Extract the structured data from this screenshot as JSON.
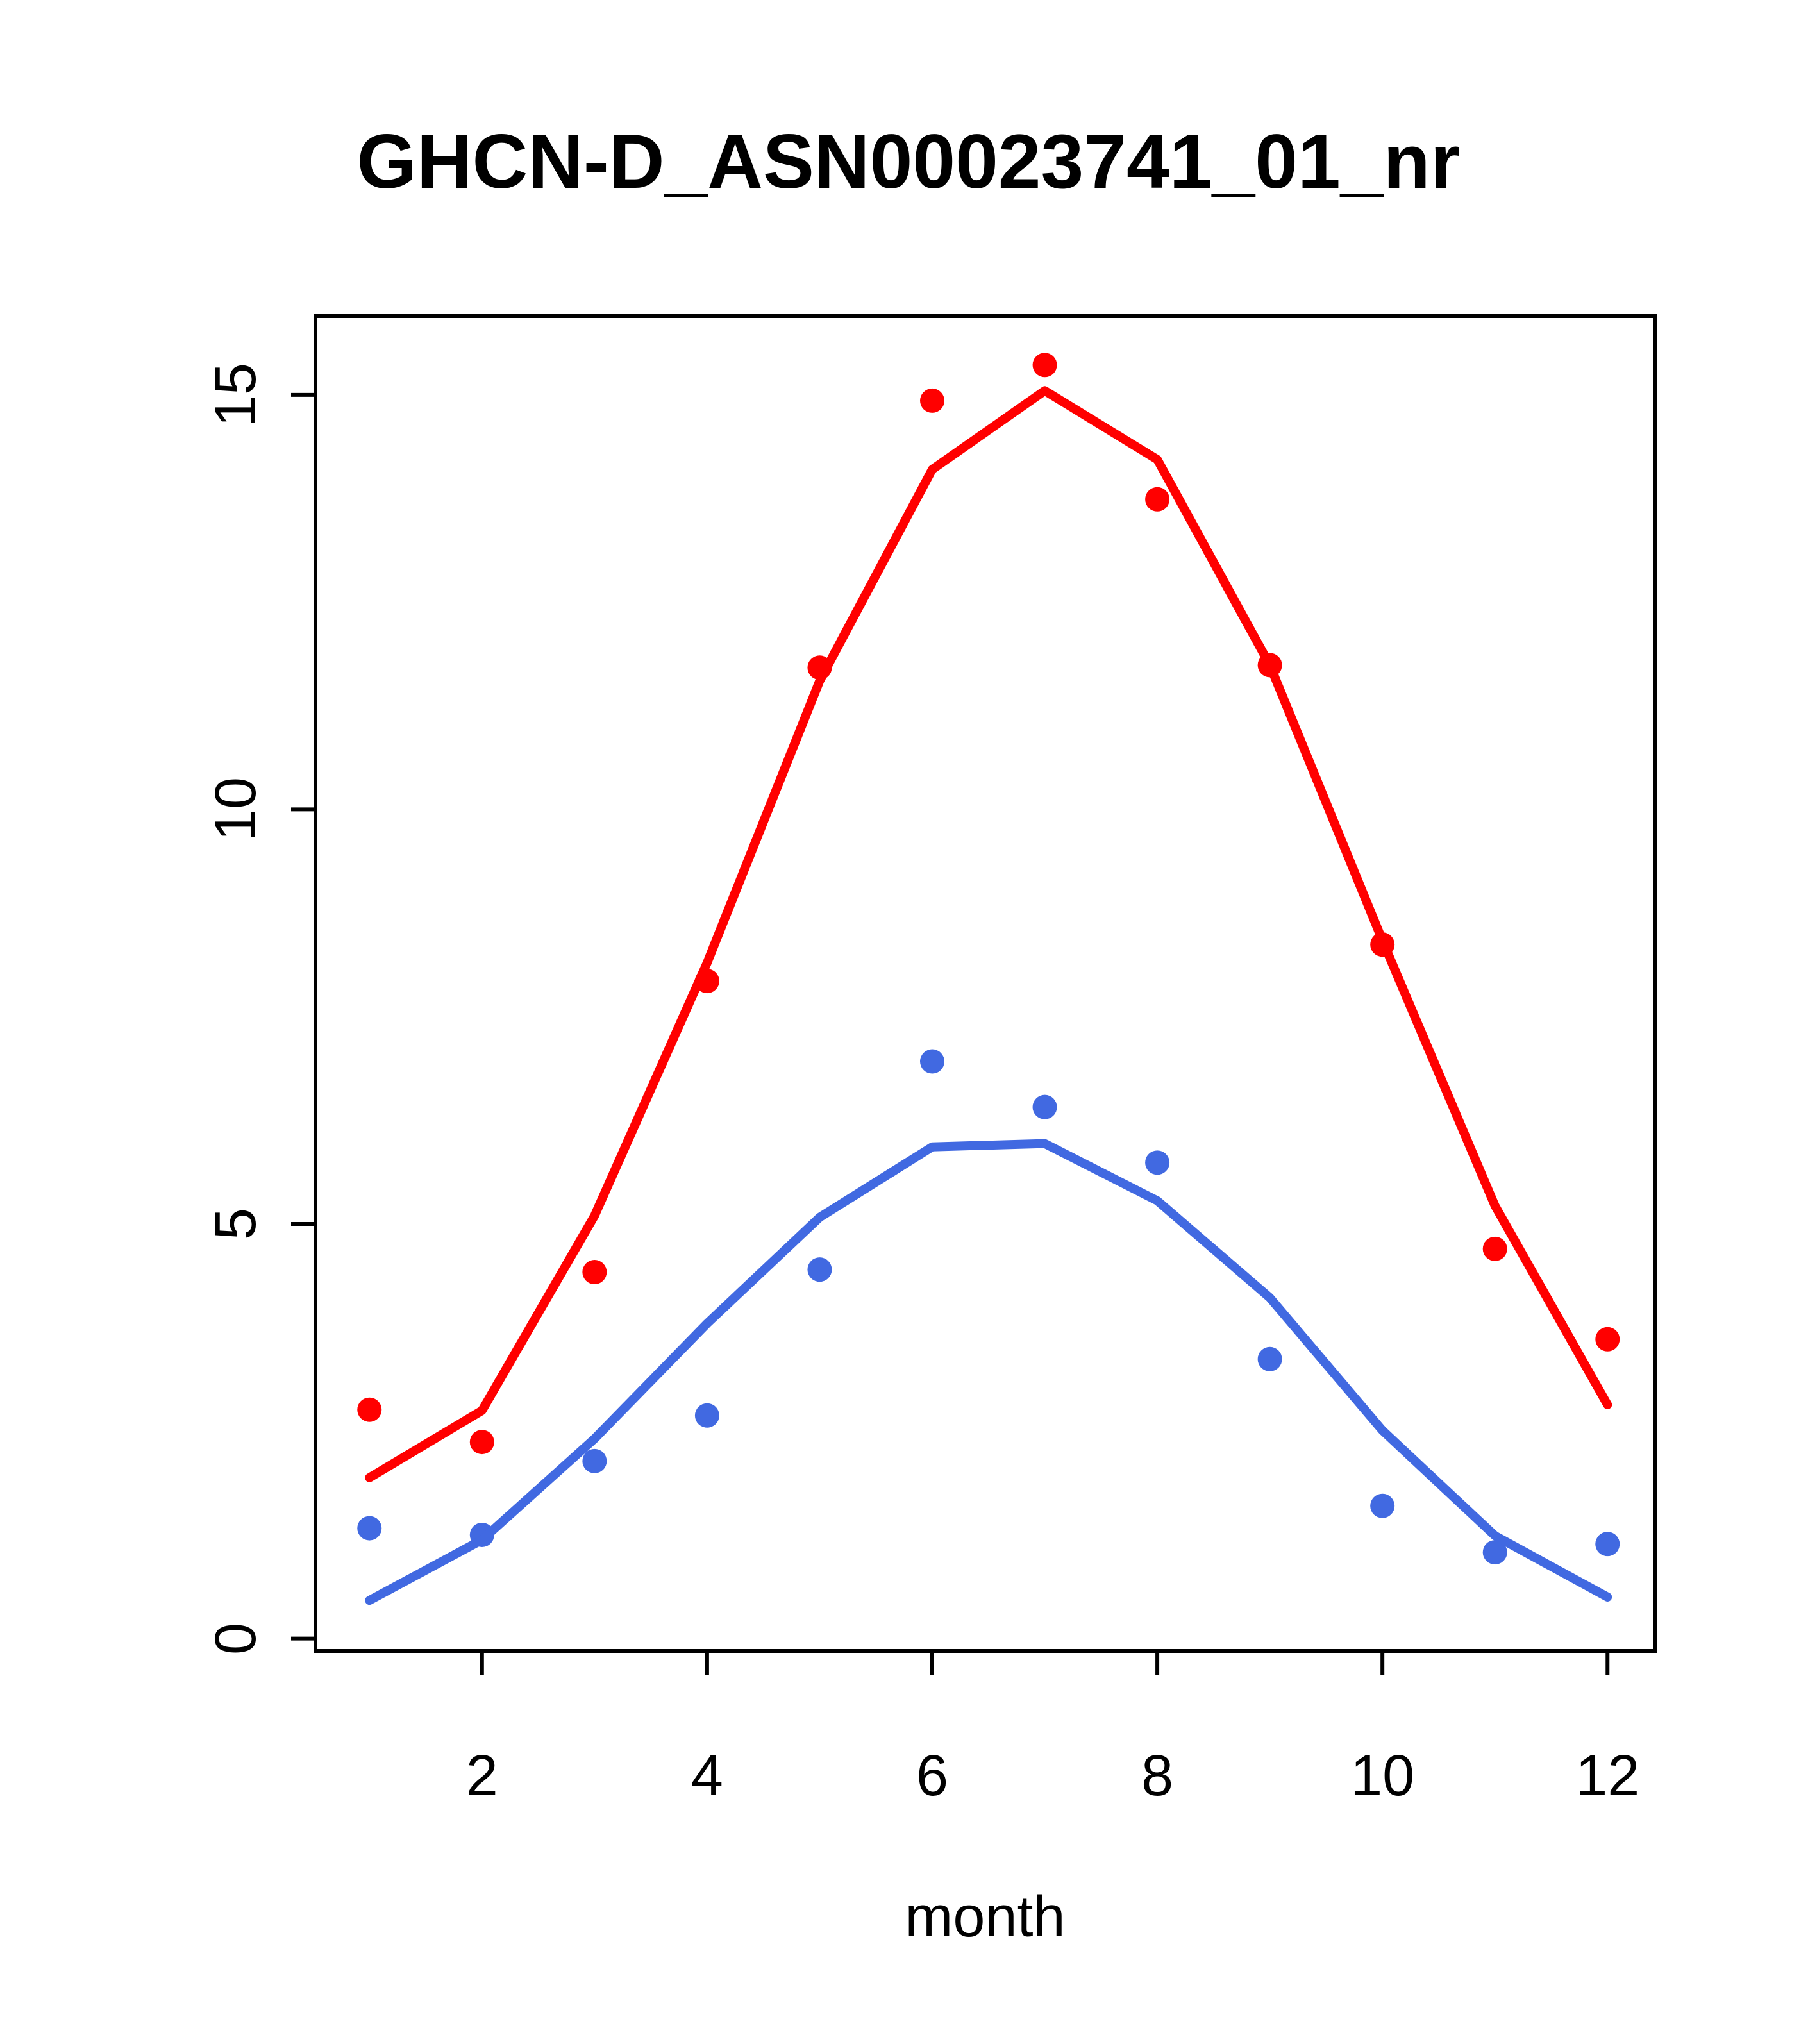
{
  "chart_data": {
    "type": "scatter",
    "title": "GHCN-D_ASN00023741_01_nr",
    "xlabel": "month",
    "ylabel": "",
    "x": [
      1,
      2,
      3,
      4,
      5,
      6,
      7,
      8,
      9,
      10,
      11,
      12
    ],
    "x_ticks": [
      "2",
      "4",
      "6",
      "8",
      "10",
      "12"
    ],
    "y_ticks": [
      "0",
      "5",
      "10",
      "15"
    ],
    "xlim": [
      0.52,
      12.42
    ],
    "ylim": [
      -0.15,
      15.95
    ],
    "grid": false,
    "legend": null,
    "colors": {
      "red_series": "#ff0000",
      "blue_series": "#4169e1",
      "axis": "#000000"
    },
    "series": [
      {
        "name": "red-observations",
        "kind": "points",
        "color": "#ff0000",
        "values": [
          2.76,
          2.37,
          4.42,
          7.93,
          11.71,
          14.93,
          15.36,
          13.74,
          11.74,
          8.37,
          4.7,
          3.61
        ]
      },
      {
        "name": "blue-observations",
        "kind": "points",
        "color": "#4169e1",
        "values": [
          1.33,
          1.25,
          2.14,
          2.69,
          4.45,
          6.96,
          6.41,
          5.74,
          3.37,
          1.6,
          1.04,
          1.14
        ]
      },
      {
        "name": "red-fit-line",
        "kind": "line",
        "color": "#ff0000",
        "values": [
          1.94,
          2.75,
          5.1,
          8.15,
          11.55,
          14.1,
          15.05,
          14.22,
          11.74,
          8.42,
          5.22,
          2.82
        ]
      },
      {
        "name": "blue-fit-line",
        "kind": "line",
        "color": "#4169e1",
        "values": [
          0.46,
          1.19,
          2.41,
          3.8,
          5.08,
          5.93,
          5.97,
          5.28,
          4.11,
          2.51,
          1.24,
          0.5
        ]
      }
    ]
  }
}
